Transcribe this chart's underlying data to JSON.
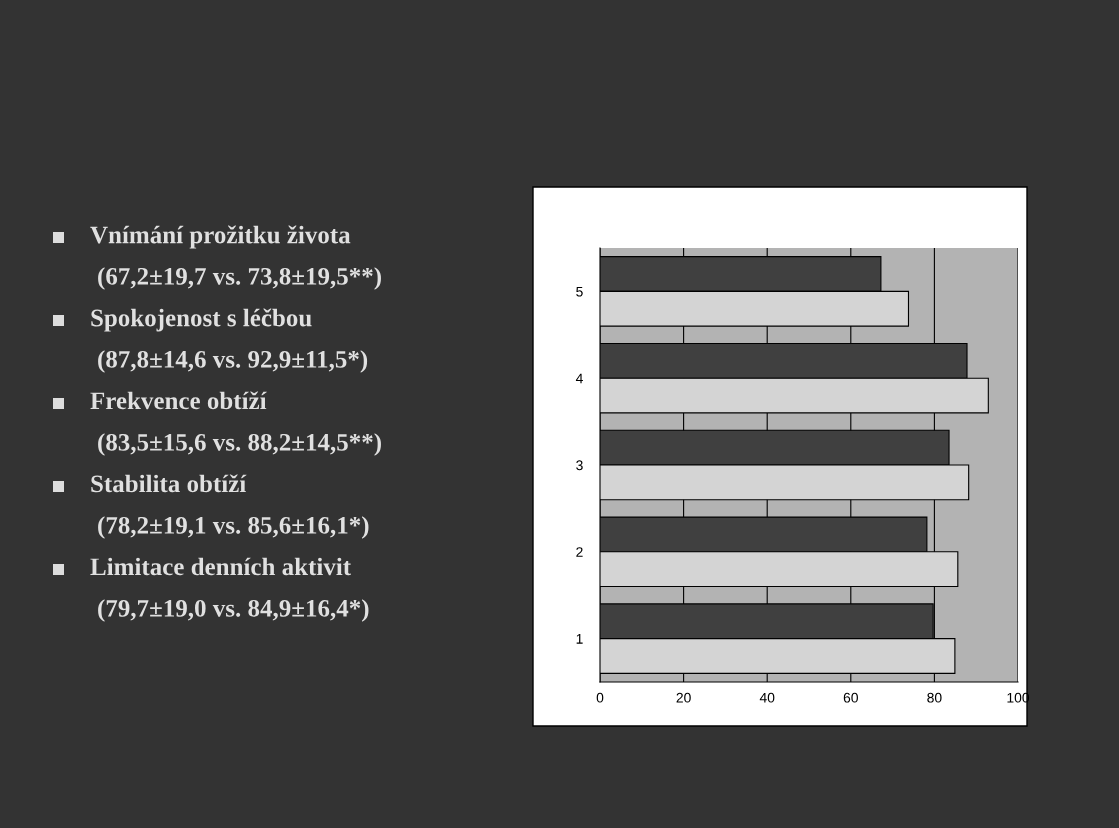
{
  "chart_data": {
    "type": "bar",
    "orientation": "horizontal",
    "categories": [
      "5",
      "4",
      "3",
      "2",
      "1"
    ],
    "series": [
      {
        "color": "#404040",
        "values": [
          67.2,
          87.8,
          83.5,
          78.2,
          79.7
        ]
      },
      {
        "color": "#d4d4d4",
        "values": [
          73.8,
          92.9,
          88.2,
          85.6,
          84.9
        ]
      }
    ],
    "xlim": [
      0,
      100
    ],
    "xticks": [
      0,
      20,
      40,
      60,
      80,
      100
    ],
    "grid": "x",
    "annotations": [
      "Vnímání prožitku života",
      "(67,2±19,7 vs. 73,8±19,5**)",
      "Spokojenost s léčbou",
      "(87,8±14,6 vs. 92,9±11,5*)",
      "Frekvence obtíží",
      "(83,5±15,6 vs. 88,2±14,5**)",
      "Stabilita obtíží",
      "(78,2±19,1 vs. 85,6±16,1*)",
      "Limitace denních aktivit",
      "(79,7±19,0 vs. 84,9±16,4*)"
    ]
  }
}
